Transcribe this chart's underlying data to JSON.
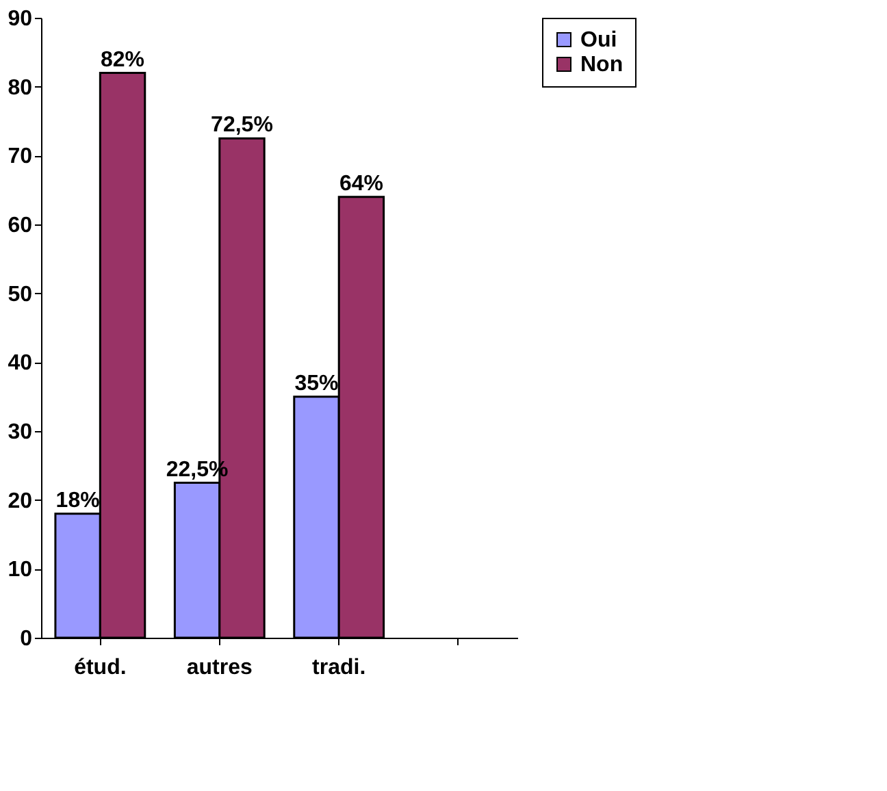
{
  "chart_data": {
    "type": "bar",
    "categories": [
      "étud.",
      "autres",
      "tradi.",
      null
    ],
    "series": [
      {
        "name": "Oui",
        "color": "#9999ff",
        "values": [
          18,
          22.5,
          35,
          null
        ],
        "value_labels": [
          "18%",
          "22,5%",
          "35%",
          null
        ]
      },
      {
        "name": "Non",
        "color": "#993366",
        "values": [
          82,
          72.5,
          64,
          null
        ],
        "value_labels": [
          "82%",
          "72,5%",
          "64%",
          null
        ]
      }
    ],
    "ylim": [
      0,
      90
    ],
    "yticks": [
      0,
      10,
      20,
      30,
      40,
      50,
      60,
      70,
      80,
      90
    ],
    "grid": false,
    "legend": "right"
  }
}
